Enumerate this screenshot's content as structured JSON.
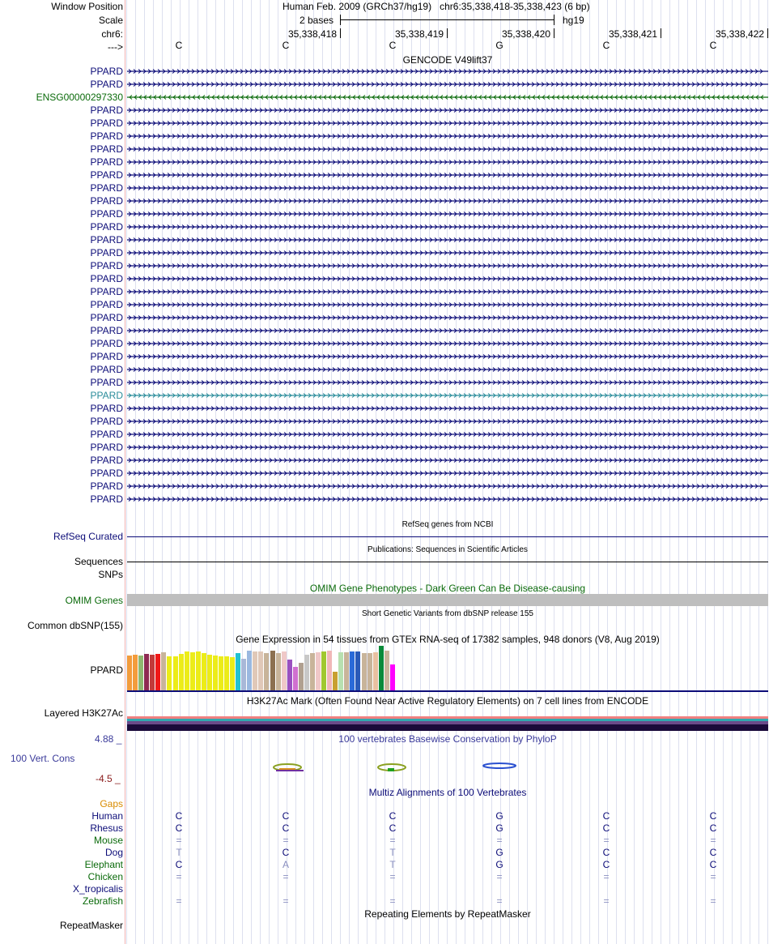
{
  "header": {
    "window_position_label": "Window Position",
    "assembly": "Human Feb. 2009 (GRCh37/hg19)",
    "position": "chr6:35,338,418-35,338,423 (6 bp)",
    "scale_label": "Scale",
    "scale_text": "2 bases",
    "db": "hg19",
    "chrom_label": "chr6:",
    "coords": [
      "35,338,418",
      "35,338,419",
      "35,338,420",
      "35,338,421",
      "35,338,422"
    ],
    "strand_label": "--->",
    "sequence": [
      "C",
      "C",
      "C",
      "G",
      "C",
      "C"
    ]
  },
  "gencode": {
    "title": "GENCODE V49lift37",
    "rows": [
      {
        "label": "PPARD",
        "color": "#0c0c78",
        "dir": "right"
      },
      {
        "label": "PPARD",
        "color": "#0c0c78",
        "dir": "right"
      },
      {
        "label": "ENSG00000297330",
        "color": "#0a6a0a",
        "dir": "left"
      },
      {
        "label": "PPARD",
        "color": "#0c0c78",
        "dir": "right"
      },
      {
        "label": "PPARD",
        "color": "#0c0c78",
        "dir": "right"
      },
      {
        "label": "PPARD",
        "color": "#0c0c78",
        "dir": "right"
      },
      {
        "label": "PPARD",
        "color": "#0c0c78",
        "dir": "right"
      },
      {
        "label": "PPARD",
        "color": "#0c0c78",
        "dir": "right"
      },
      {
        "label": "PPARD",
        "color": "#0c0c78",
        "dir": "right"
      },
      {
        "label": "PPARD",
        "color": "#0c0c78",
        "dir": "right"
      },
      {
        "label": "PPARD",
        "color": "#0c0c78",
        "dir": "right"
      },
      {
        "label": "PPARD",
        "color": "#0c0c78",
        "dir": "right"
      },
      {
        "label": "PPARD",
        "color": "#0c0c78",
        "dir": "right"
      },
      {
        "label": "PPARD",
        "color": "#0c0c78",
        "dir": "right"
      },
      {
        "label": "PPARD",
        "color": "#0c0c78",
        "dir": "right"
      },
      {
        "label": "PPARD",
        "color": "#0c0c78",
        "dir": "right"
      },
      {
        "label": "PPARD",
        "color": "#0c0c78",
        "dir": "right"
      },
      {
        "label": "PPARD",
        "color": "#0c0c78",
        "dir": "right"
      },
      {
        "label": "PPARD",
        "color": "#0c0c78",
        "dir": "right"
      },
      {
        "label": "PPARD",
        "color": "#0c0c78",
        "dir": "right"
      },
      {
        "label": "PPARD",
        "color": "#0c0c78",
        "dir": "right"
      },
      {
        "label": "PPARD",
        "color": "#0c0c78",
        "dir": "right"
      },
      {
        "label": "PPARD",
        "color": "#0c0c78",
        "dir": "right"
      },
      {
        "label": "PPARD",
        "color": "#0c0c78",
        "dir": "right"
      },
      {
        "label": "PPARD",
        "color": "#0c0c78",
        "dir": "right"
      },
      {
        "label": "PPARD",
        "color": "#2a8c9a",
        "dir": "right"
      },
      {
        "label": "PPARD",
        "color": "#0c0c78",
        "dir": "right"
      },
      {
        "label": "PPARD",
        "color": "#0c0c78",
        "dir": "right"
      },
      {
        "label": "PPARD",
        "color": "#0c0c78",
        "dir": "right"
      },
      {
        "label": "PPARD",
        "color": "#0c0c78",
        "dir": "right"
      },
      {
        "label": "PPARD",
        "color": "#0c0c78",
        "dir": "right"
      },
      {
        "label": "PPARD",
        "color": "#0c0c78",
        "dir": "right"
      },
      {
        "label": "PPARD",
        "color": "#0c0c78",
        "dir": "right"
      },
      {
        "label": "PPARD",
        "color": "#0c0c78",
        "dir": "right"
      }
    ]
  },
  "refseq": {
    "title": "RefSeq genes from NCBI",
    "label": "RefSeq Curated"
  },
  "pubs": {
    "title": "Publications: Sequences in Scientific Articles",
    "label": "Sequences"
  },
  "snps": {
    "label": "SNPs"
  },
  "omim": {
    "title": "OMIM Gene Phenotypes - Dark Green Can Be Disease-causing",
    "label": "OMIM Genes"
  },
  "dbsnp": {
    "title": "Short Genetic Variants from dbSNP release 155",
    "label": "Common dbSNP(155)"
  },
  "gtex": {
    "title": "Gene Expression in 54 tissues from GTEx RNA-seq of 17382 samples, 948 donors (V8, Aug 2019)",
    "label": "PPARD",
    "bars": [
      {
        "color": "#f39c3c",
        "h": 0.77
      },
      {
        "color": "#f39c3c",
        "h": 0.79
      },
      {
        "color": "#8fb870",
        "h": 0.77
      },
      {
        "color": "#8e2a52",
        "h": 0.81
      },
      {
        "color": "#c23a3a",
        "h": 0.79
      },
      {
        "color": "#f01818",
        "h": 0.81
      },
      {
        "color": "#c8b49a",
        "h": 0.84
      },
      {
        "color": "#ecec18",
        "h": 0.75
      },
      {
        "color": "#ecec18",
        "h": 0.75
      },
      {
        "color": "#ecec18",
        "h": 0.81
      },
      {
        "color": "#ecec18",
        "h": 0.86
      },
      {
        "color": "#ecec18",
        "h": 0.84
      },
      {
        "color": "#ecec18",
        "h": 0.86
      },
      {
        "color": "#ecec18",
        "h": 0.82
      },
      {
        "color": "#ecec18",
        "h": 0.79
      },
      {
        "color": "#ecec18",
        "h": 0.77
      },
      {
        "color": "#ecec18",
        "h": 0.75
      },
      {
        "color": "#ecec18",
        "h": 0.75
      },
      {
        "color": "#ecec18",
        "h": 0.73
      },
      {
        "color": "#22c2d2",
        "h": 0.82
      },
      {
        "color": "#a8b8d8",
        "h": 0.7
      },
      {
        "color": "#9ab8e0",
        "h": 0.88
      },
      {
        "color": "#e0c8b8",
        "h": 0.86
      },
      {
        "color": "#e0c8b8",
        "h": 0.86
      },
      {
        "color": "#c8b49a",
        "h": 0.82
      },
      {
        "color": "#8c7050",
        "h": 0.88
      },
      {
        "color": "#c8b49a",
        "h": 0.82
      },
      {
        "color": "#f0c8c8",
        "h": 0.86
      },
      {
        "color": "#9a50c0",
        "h": 0.68
      },
      {
        "color": "#d070d0",
        "h": 0.52
      },
      {
        "color": "#b0a090",
        "h": 0.61
      },
      {
        "color": "#c8c8c8",
        "h": 0.79
      },
      {
        "color": "#c8b49a",
        "h": 0.82
      },
      {
        "color": "#f0c8c8",
        "h": 0.84
      },
      {
        "color": "#a0c830",
        "h": 0.86
      },
      {
        "color": "#f0b8b8",
        "h": 0.88
      },
      {
        "color": "#c8a030",
        "h": 0.41
      },
      {
        "color": "#b8e0b0",
        "h": 0.84
      },
      {
        "color": "#c8b49a",
        "h": 0.84
      },
      {
        "color": "#2a6ad8",
        "h": 0.86
      },
      {
        "color": "#2a5ab8",
        "h": 0.86
      },
      {
        "color": "#c8b49a",
        "h": 0.82
      },
      {
        "color": "#c8b49a",
        "h": 0.82
      },
      {
        "color": "#e8c0a0",
        "h": 0.84
      },
      {
        "color": "#0a8a3a",
        "h": 0.98
      },
      {
        "color": "#c8b49a",
        "h": 0.88
      },
      {
        "color": "#ff00ff",
        "h": 0.57
      }
    ]
  },
  "h3k27ac": {
    "title": "H3K27Ac Mark (Often Found Near Active Regulatory Elements) on 7 cell lines from ENCODE",
    "label": "Layered H3K27Ac"
  },
  "phylop": {
    "title": "100 vertebrates Basewise Conservation by PhyloP",
    "label": "100 Vert. Cons",
    "max": "4.88 _",
    "min": "-4.5 _"
  },
  "multiz": {
    "title": "Multiz Alignments of 100 Vertebrates",
    "gaps_label": "Gaps",
    "species": [
      {
        "name": "Human",
        "color": "#0c0c78",
        "bases": [
          "C",
          "C",
          "C",
          "G",
          "C",
          "C"
        ],
        "style": "blk"
      },
      {
        "name": "Rhesus",
        "color": "#0c0c78",
        "bases": [
          "C",
          "C",
          "C",
          "G",
          "C",
          "C"
        ],
        "style": "blk"
      },
      {
        "name": "Mouse",
        "color": "#0a6a0a",
        "bases": [
          "=",
          "=",
          "=",
          "=",
          "=",
          "="
        ],
        "style": "gry"
      },
      {
        "name": "Dog",
        "color": "#0c0c78",
        "bases": [
          "T",
          "C",
          "T",
          "G",
          "C",
          "C"
        ],
        "style": "mix"
      },
      {
        "name": "Elephant",
        "color": "#0a6a0a",
        "bases": [
          "C",
          "A",
          "T",
          "G",
          "C",
          "C"
        ],
        "style": "mix"
      },
      {
        "name": "Chicken",
        "color": "#0a6a0a",
        "bases": [
          "=",
          "=",
          "=",
          "=",
          "=",
          "="
        ],
        "style": "gry"
      },
      {
        "name": "X_tropicalis",
        "color": "#0c0c78",
        "bases": [
          "",
          "",
          "",
          "",
          "",
          ""
        ],
        "style": "gry"
      },
      {
        "name": "Zebrafish",
        "color": "#0a6a0a",
        "bases": [
          "=",
          "=",
          "=",
          "=",
          "=",
          "="
        ],
        "style": "gry"
      }
    ]
  },
  "repeatmasker": {
    "title": "Repeating Elements by RepeatMasker",
    "label": "RepeatMasker"
  }
}
